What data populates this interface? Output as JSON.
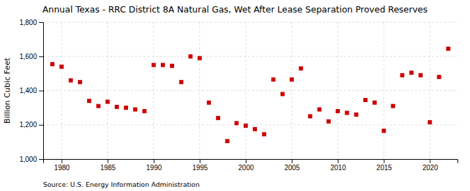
{
  "chart_data": {
    "type": "scatter",
    "title": "Annual Texas - RRC District 8A Natural Gas, Wet After Lease Separation Proved Reserves",
    "ylabel": "Billion Cubic Feet",
    "source": "Source: U.S. Energy Information Administration",
    "x": [
      1979,
      1980,
      1981,
      1982,
      1983,
      1984,
      1985,
      1986,
      1987,
      1988,
      1989,
      1990,
      1991,
      1992,
      1993,
      1994,
      1995,
      1996,
      1997,
      1998,
      1999,
      2000,
      2001,
      2002,
      2003,
      2004,
      2005,
      2006,
      2007,
      2008,
      2009,
      2010,
      2011,
      2012,
      2013,
      2014,
      2015,
      2016,
      2017,
      2018,
      2019,
      2020,
      2021,
      2022
    ],
    "values": [
      1555,
      1540,
      1460,
      1450,
      1340,
      1310,
      1335,
      1305,
      1300,
      1290,
      1280,
      1550,
      1550,
      1545,
      1450,
      1600,
      1590,
      1330,
      1240,
      1105,
      1210,
      1195,
      1175,
      1145,
      1465,
      1380,
      1465,
      1530,
      1250,
      1290,
      1220,
      1280,
      1270,
      1260,
      1345,
      1330,
      1165,
      1310,
      1490,
      1505,
      1490,
      1215,
      1480,
      1645
    ],
    "color": "#cc0000",
    "marker": "square",
    "xlim": [
      1978,
      2023
    ],
    "xticks": [
      1980,
      1985,
      1990,
      1995,
      2000,
      2005,
      2010,
      2015,
      2020
    ],
    "ylim": [
      1000,
      1800
    ],
    "yticks": [
      {
        "value": 1000,
        "label": "1,000"
      },
      {
        "value": 1200,
        "label": "1,200"
      },
      {
        "value": 1400,
        "label": "1,400"
      },
      {
        "value": 1600,
        "label": "1,600"
      },
      {
        "value": 1800,
        "label": "1,800"
      }
    ],
    "grid": true
  }
}
